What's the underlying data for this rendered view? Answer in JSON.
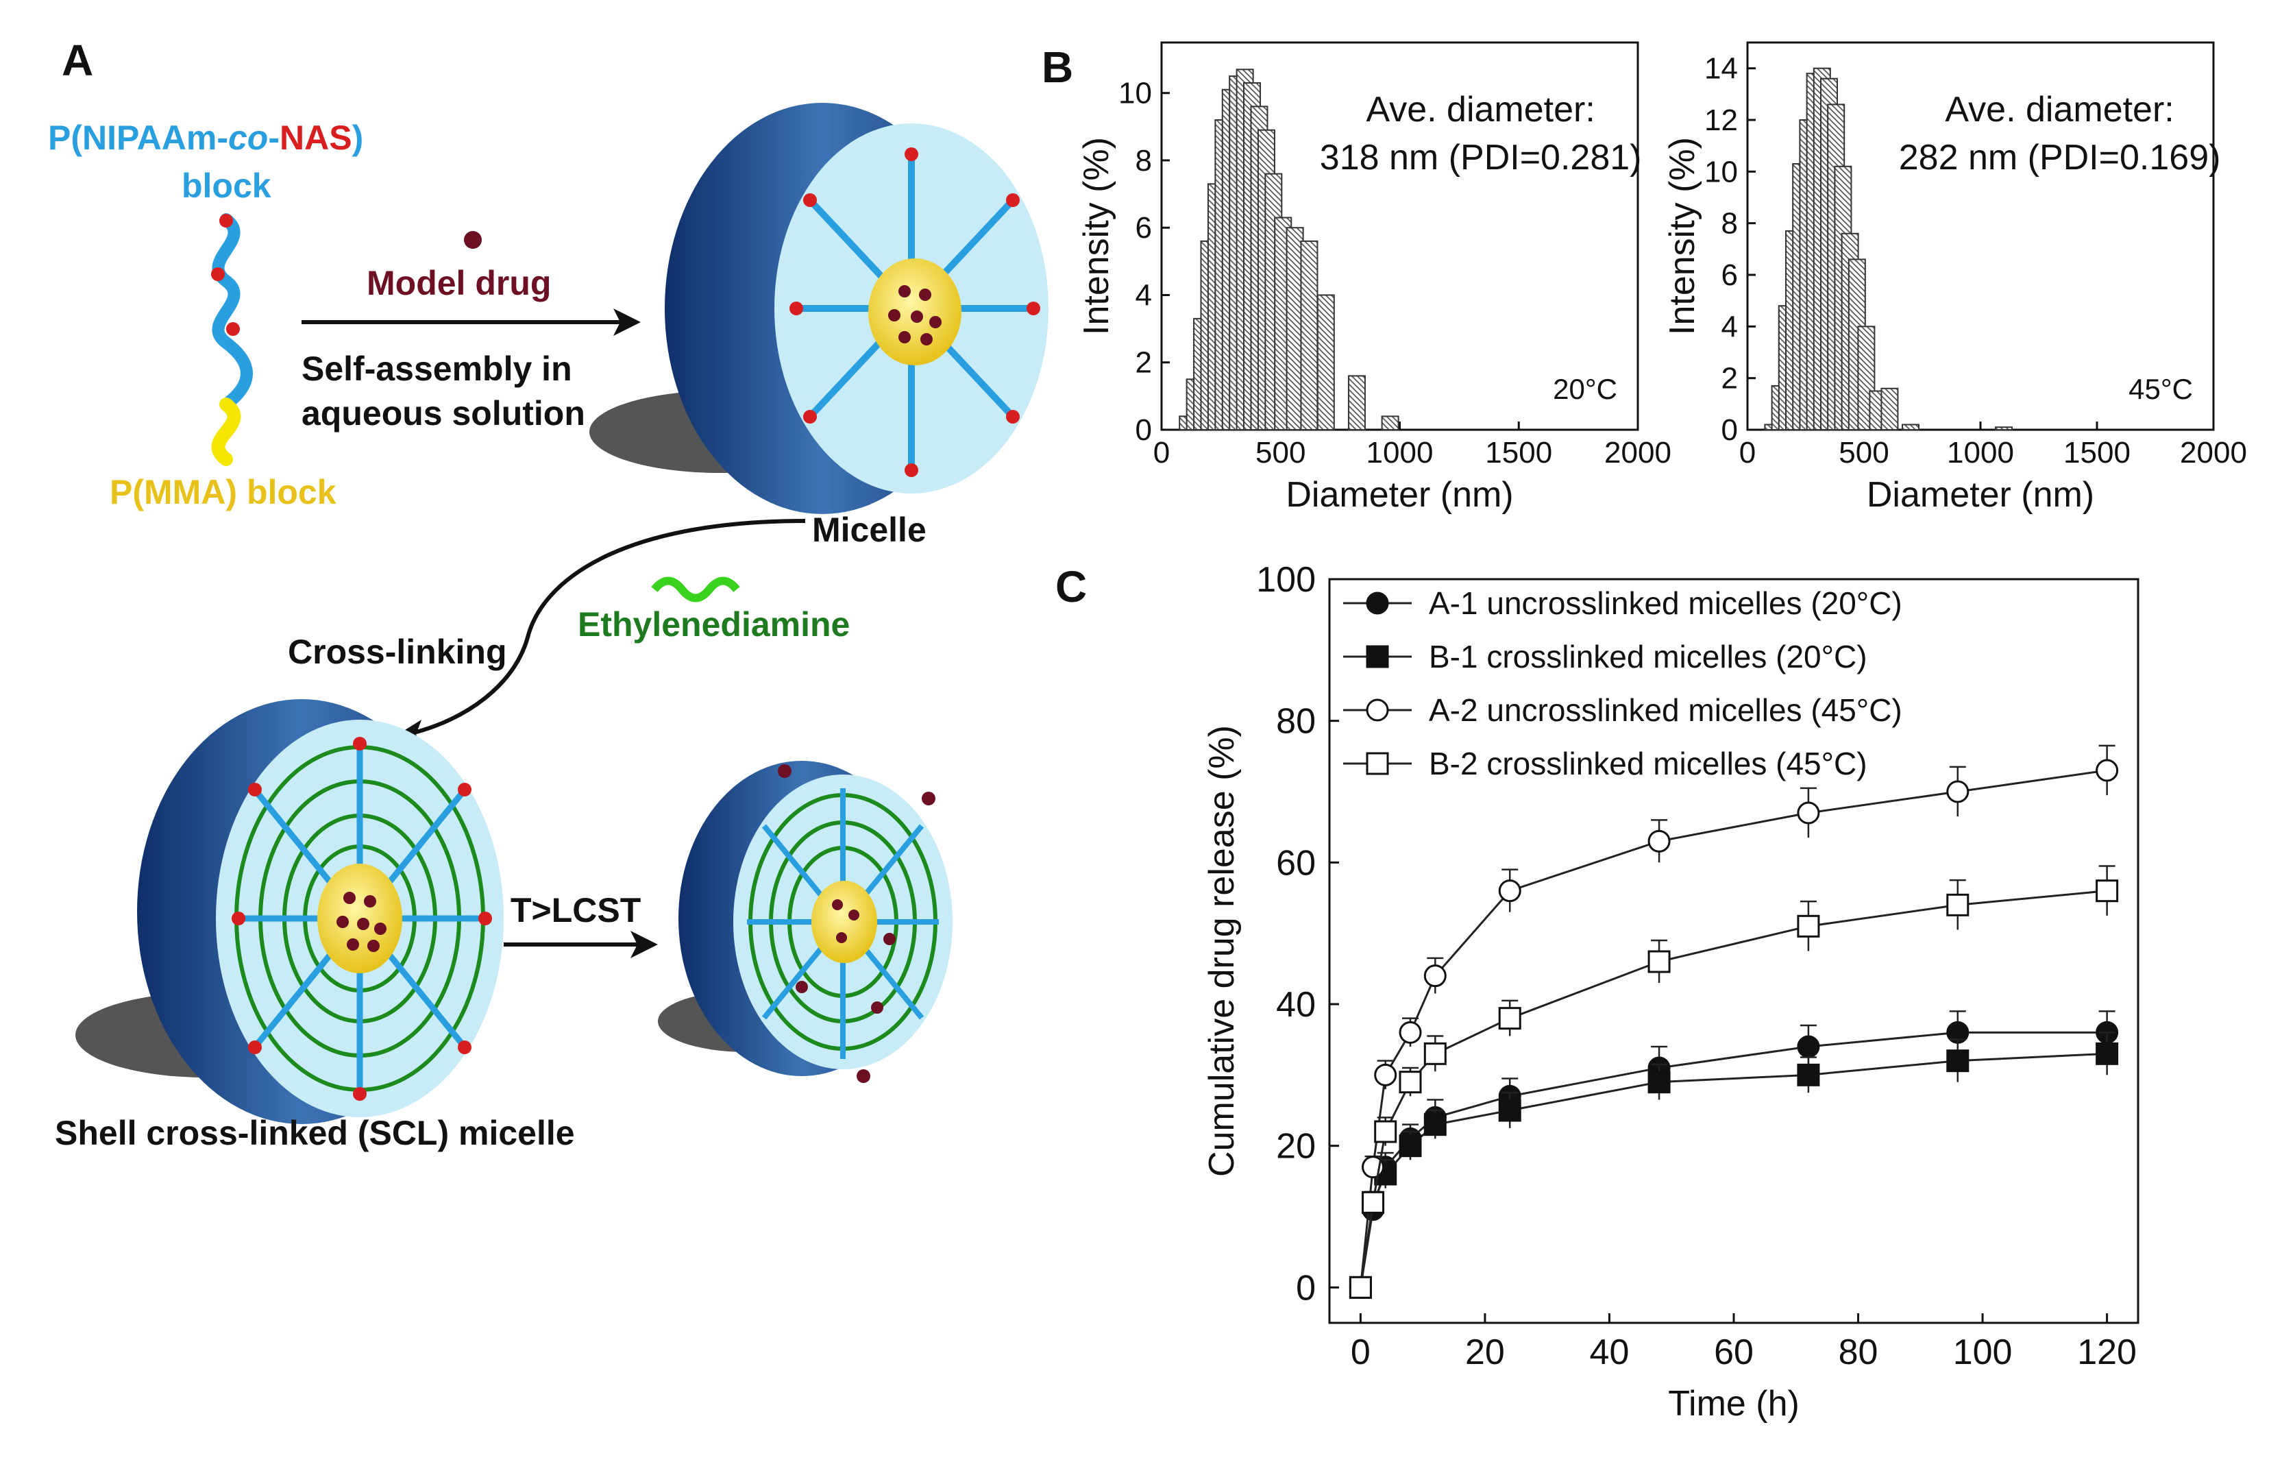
{
  "panel_a": {
    "letter": "A",
    "copolymer_p": "P(NIPAAm-",
    "copolymer_co": "co",
    "copolymer_dash": "-",
    "copolymer_nas": "NAS",
    "copolymer_close": ")",
    "block_word": "block",
    "pmma_label": "P(MMA) block",
    "model_drug": "Model drug",
    "self_assembly_line1": "Self-assembly in",
    "self_assembly_line2": "aqueous solution",
    "micelle": "Micelle",
    "crosslinking": "Cross-linking",
    "ethylenediamine": "Ethylenediamine",
    "lcst": "T>LCST",
    "scl_micelle": "Shell cross-linked (SCL) micelle",
    "colors": {
      "blue": "#2a9fe0",
      "red": "#d81e1e",
      "yellow": "#e8c21a",
      "green": "#1e7a1e",
      "maroon": "#6e1023"
    }
  },
  "panel_b_letter": "B",
  "panel_c_letter": "C",
  "chart_data": [
    {
      "type": "bar",
      "id": "dls-20C",
      "xlabel": "Diameter (nm)",
      "ylabel": "Intensity (%)",
      "xlim": [
        0,
        2000
      ],
      "ylim": [
        0,
        11.5
      ],
      "xticks": [
        0,
        500,
        1000,
        1500,
        2000
      ],
      "yticks": [
        0,
        2,
        4,
        6,
        8,
        10
      ],
      "annotation_line1": "Ave. diameter:",
      "annotation_line2": "318 nm (PDI=0.281)",
      "temperature": "20°C",
      "x": [
        110,
        140,
        170,
        200,
        230,
        260,
        290,
        320,
        350,
        380,
        410,
        440,
        470,
        510,
        560,
        620,
        690,
        820,
        960
      ],
      "values": [
        0.4,
        1.5,
        3.3,
        5.6,
        7.3,
        9.2,
        10.1,
        10.5,
        10.7,
        10.3,
        9.6,
        8.9,
        7.6,
        6.3,
        6.0,
        5.6,
        4.0,
        1.6,
        0.4
      ]
    },
    {
      "type": "bar",
      "id": "dls-45C",
      "xlabel": "Diameter (nm)",
      "ylabel": "Intensity (%)",
      "xlim": [
        0,
        2000
      ],
      "ylim": [
        0,
        15
      ],
      "xticks": [
        0,
        500,
        1000,
        1500,
        2000
      ],
      "yticks": [
        0,
        2,
        4,
        6,
        8,
        10,
        12,
        14
      ],
      "annotation_line1": "Ave. diameter:",
      "annotation_line2": "282 nm (PDI=0.169)",
      "temperature": "45°C",
      "x": [
        110,
        140,
        170,
        200,
        230,
        260,
        290,
        320,
        350,
        380,
        410,
        440,
        470,
        510,
        560,
        610,
        700,
        1100
      ],
      "values": [
        0.2,
        1.7,
        4.8,
        7.7,
        10.3,
        12.0,
        13.8,
        14.0,
        13.6,
        12.6,
        10.2,
        7.6,
        6.6,
        4.0,
        1.5,
        1.6,
        0.2,
        0.1
      ]
    },
    {
      "type": "line",
      "id": "drug-release",
      "xlabel": "Time (h)",
      "ylabel": "Cumulative drug release (%)",
      "xlim": [
        -5,
        125
      ],
      "ylim": [
        -5,
        100
      ],
      "xticks": [
        0,
        20,
        40,
        60,
        80,
        100,
        120
      ],
      "yticks": [
        0,
        20,
        40,
        60,
        80,
        100
      ],
      "x": [
        0,
        2,
        4,
        8,
        12,
        24,
        48,
        72,
        96,
        120
      ],
      "series": [
        {
          "name": "A-1 uncrosslinked micelles (20°C)",
          "marker": "circle",
          "filled": true,
          "values": [
            0,
            11,
            17,
            21,
            24,
            27,
            31,
            34,
            36,
            36
          ],
          "err": [
            0,
            1.5,
            2,
            2,
            2.5,
            2.5,
            3,
            3,
            3,
            3
          ]
        },
        {
          "name": "B-1 crosslinked micelles (20°C)",
          "marker": "square",
          "filled": true,
          "values": [
            0,
            12,
            16,
            20,
            23,
            25,
            29,
            30,
            32,
            33
          ],
          "err": [
            0,
            1.5,
            2,
            2,
            2,
            2.5,
            2.5,
            2.5,
            3,
            3
          ]
        },
        {
          "name": "A-2 uncrosslinked micelles (45°C)",
          "marker": "circle",
          "filled": false,
          "values": [
            0,
            17,
            30,
            36,
            44,
            56,
            63,
            67,
            70,
            73
          ],
          "err": [
            0,
            1.5,
            2,
            2,
            2.5,
            3,
            3,
            3.5,
            3.5,
            3.5
          ]
        },
        {
          "name": "B-2 crosslinked micelles (45°C)",
          "marker": "square",
          "filled": false,
          "values": [
            0,
            12,
            22,
            29,
            33,
            38,
            46,
            51,
            54,
            56
          ],
          "err": [
            0,
            1.5,
            2,
            2,
            2.5,
            2.5,
            3,
            3.5,
            3.5,
            3.5
          ]
        }
      ]
    }
  ]
}
